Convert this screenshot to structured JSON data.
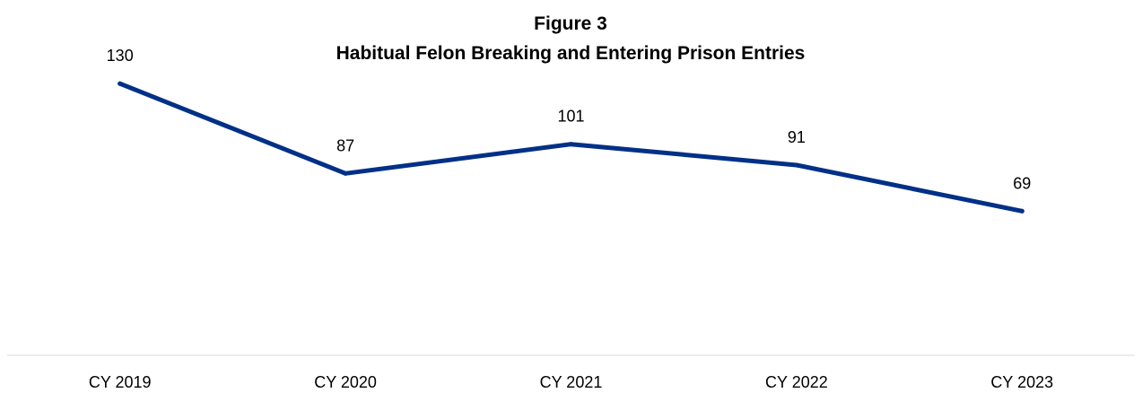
{
  "chart_data": {
    "type": "line",
    "title": "Figure 3",
    "subtitle": "Habitual Felon Breaking and Entering Prison Entries",
    "categories": [
      "CY 2019",
      "CY 2020",
      "CY 2021",
      "CY 2022",
      "CY 2023"
    ],
    "series": [
      {
        "values": [
          130,
          87,
          101,
          91,
          69
        ],
        "color": "#003087"
      }
    ],
    "ylim": [
      0,
      170
    ],
    "grid": false,
    "legend": "none",
    "data_labels": true,
    "colors": {
      "line": "#003087",
      "axis": "#d9d9d9",
      "text": "#000000"
    }
  }
}
